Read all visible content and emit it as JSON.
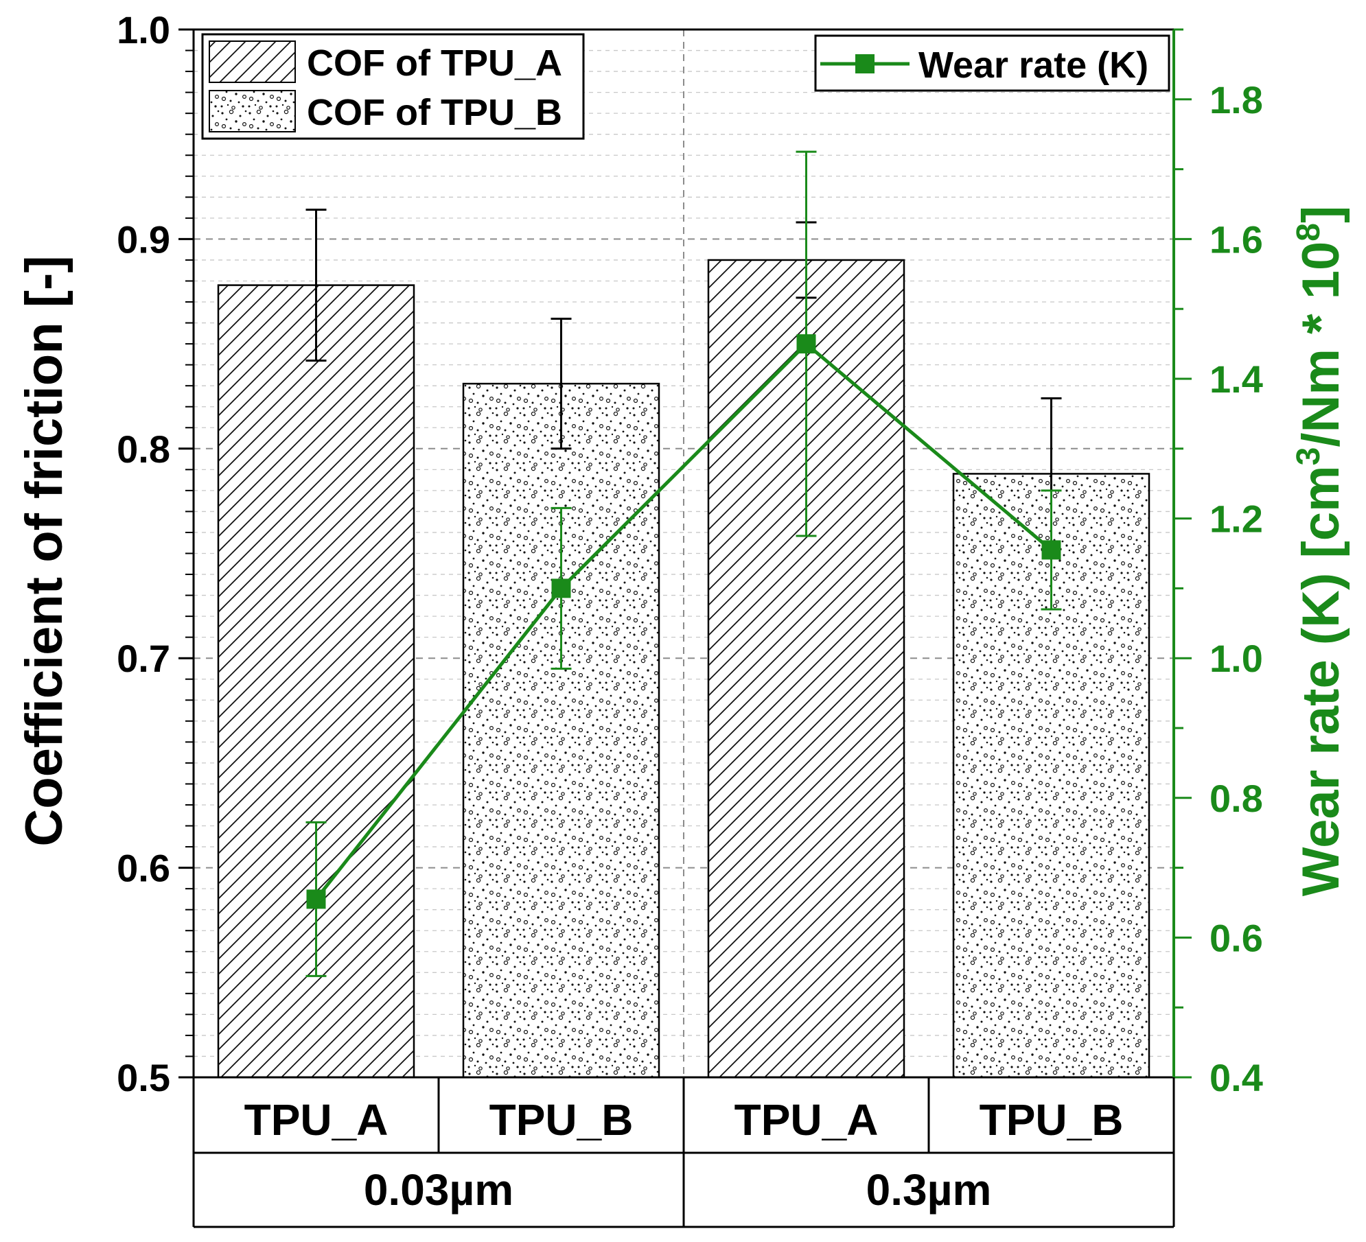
{
  "chart_data": {
    "type": "bar",
    "categories": [
      "TPU_A",
      "TPU_B",
      "TPU_A",
      "TPU_B"
    ],
    "groups": [
      {
        "label": "0.03µm",
        "span": [
          0,
          1
        ]
      },
      {
        "label": "0.3µm",
        "span": [
          2,
          3
        ]
      }
    ],
    "series": [
      {
        "name": "COF",
        "axis": "left",
        "type": "bar",
        "values": [
          0.878,
          0.831,
          0.89,
          0.788
        ],
        "errors": [
          0.036,
          0.031,
          0.018,
          0.036
        ],
        "patterns": [
          "hatch",
          "dots",
          "hatch",
          "dots"
        ]
      },
      {
        "name": "Wear rate (K)",
        "axis": "right",
        "type": "line",
        "color": "#1a8a1a",
        "values": [
          0.655,
          1.1,
          1.45,
          1.155
        ],
        "errors": [
          0.11,
          0.115,
          0.275,
          0.085
        ]
      }
    ],
    "ylabel": "Coefficient of friction [-]",
    "ylim": [
      0.5,
      1.0
    ],
    "yticks": [
      "0.5",
      "0.6",
      "0.7",
      "0.8",
      "0.9",
      "1.0"
    ],
    "y2label": {
      "prefix": "Wear rate (K) [cm",
      "sup1": "3",
      "mid": "/Nm * 10",
      "sup2": "8",
      "suffix": "]"
    },
    "y2lim": [
      0.4,
      1.9
    ],
    "y2ticks": [
      "0.4",
      "0.6",
      "0.8",
      "1.0",
      "1.2",
      "1.4",
      "1.6",
      "1.8"
    ],
    "legend_left": [
      "COF of TPU_A",
      "COF of TPU_B"
    ],
    "legend_right": "Wear rate (K)",
    "grid": true
  }
}
